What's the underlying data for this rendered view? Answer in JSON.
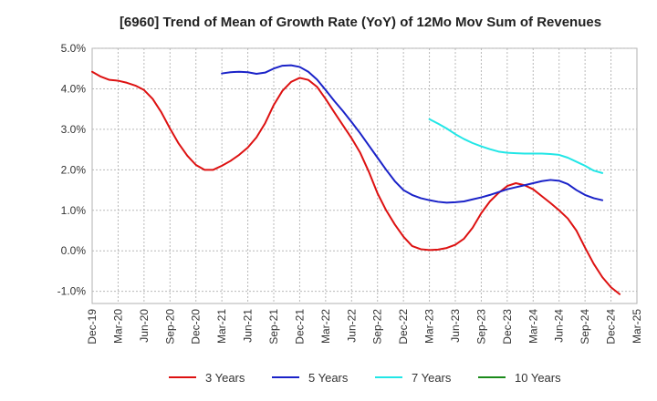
{
  "chart_data": {
    "type": "line",
    "title": "[6960]  Trend of Mean of Growth Rate (YoY) of 12Mo Mov Sum of Revenues",
    "xlabel": "",
    "ylabel": "",
    "ylim": [
      -1.3,
      5.0
    ],
    "y_ticks": [
      -1.0,
      0.0,
      1.0,
      2.0,
      3.0,
      4.0,
      5.0
    ],
    "y_tick_labels": [
      "-1.0%",
      "0.0%",
      "1.0%",
      "2.0%",
      "3.0%",
      "4.0%",
      "5.0%"
    ],
    "x_tick_labels": [
      "Dec-19",
      "Mar-20",
      "Jun-20",
      "Sep-20",
      "Dec-20",
      "Mar-21",
      "Jun-21",
      "Sep-21",
      "Dec-21",
      "Mar-22",
      "Jun-22",
      "Sep-22",
      "Dec-22",
      "Mar-23",
      "Jun-23",
      "Sep-23",
      "Dec-23",
      "Mar-24",
      "Jun-24",
      "Sep-24",
      "Dec-24",
      "Mar-25"
    ],
    "grid": true,
    "legend_position": "bottom",
    "series": [
      {
        "name": "3 Years",
        "color": "#dd1111",
        "points": [
          [
            0,
            4.42
          ],
          [
            1,
            4.3
          ],
          [
            2,
            4.22
          ],
          [
            3,
            4.2
          ],
          [
            4,
            4.15
          ],
          [
            5,
            4.08
          ],
          [
            6,
            3.97
          ],
          [
            7,
            3.75
          ],
          [
            8,
            3.42
          ],
          [
            9,
            3.02
          ],
          [
            10,
            2.65
          ],
          [
            11,
            2.35
          ],
          [
            12,
            2.12
          ],
          [
            13,
            2.0
          ],
          [
            14,
            2.0
          ],
          [
            15,
            2.1
          ],
          [
            16,
            2.22
          ],
          [
            17,
            2.37
          ],
          [
            18,
            2.55
          ],
          [
            19,
            2.8
          ],
          [
            20,
            3.15
          ],
          [
            21,
            3.6
          ],
          [
            22,
            3.95
          ],
          [
            23,
            4.17
          ],
          [
            24,
            4.27
          ],
          [
            25,
            4.22
          ],
          [
            26,
            4.05
          ],
          [
            27,
            3.75
          ],
          [
            28,
            3.42
          ],
          [
            29,
            3.1
          ],
          [
            30,
            2.78
          ],
          [
            31,
            2.42
          ],
          [
            32,
            1.95
          ],
          [
            33,
            1.42
          ],
          [
            34,
            1.0
          ],
          [
            35,
            0.65
          ],
          [
            36,
            0.35
          ],
          [
            37,
            0.12
          ],
          [
            38,
            0.04
          ],
          [
            39,
            0.02
          ],
          [
            40,
            0.03
          ],
          [
            41,
            0.07
          ],
          [
            42,
            0.15
          ],
          [
            43,
            0.3
          ],
          [
            44,
            0.57
          ],
          [
            45,
            0.93
          ],
          [
            46,
            1.22
          ],
          [
            47,
            1.43
          ],
          [
            48,
            1.6
          ],
          [
            49,
            1.67
          ],
          [
            50,
            1.62
          ],
          [
            51,
            1.52
          ],
          [
            52,
            1.35
          ],
          [
            53,
            1.18
          ],
          [
            54,
            1.0
          ],
          [
            55,
            0.8
          ],
          [
            56,
            0.5
          ],
          [
            57,
            0.08
          ],
          [
            58,
            -0.32
          ],
          [
            59,
            -0.65
          ],
          [
            60,
            -0.9
          ],
          [
            61,
            -1.07
          ]
        ]
      },
      {
        "name": "5 Years",
        "color": "#1a22c8",
        "points": [
          [
            15,
            4.38
          ],
          [
            16,
            4.41
          ],
          [
            17,
            4.42
          ],
          [
            18,
            4.41
          ],
          [
            19,
            4.37
          ],
          [
            20,
            4.4
          ],
          [
            21,
            4.5
          ],
          [
            22,
            4.57
          ],
          [
            23,
            4.58
          ],
          [
            24,
            4.54
          ],
          [
            25,
            4.42
          ],
          [
            26,
            4.23
          ],
          [
            27,
            3.97
          ],
          [
            28,
            3.7
          ],
          [
            29,
            3.45
          ],
          [
            30,
            3.18
          ],
          [
            31,
            2.9
          ],
          [
            32,
            2.6
          ],
          [
            33,
            2.3
          ],
          [
            34,
            2.0
          ],
          [
            35,
            1.72
          ],
          [
            36,
            1.5
          ],
          [
            37,
            1.38
          ],
          [
            38,
            1.3
          ],
          [
            39,
            1.25
          ],
          [
            40,
            1.21
          ],
          [
            41,
            1.19
          ],
          [
            42,
            1.2
          ],
          [
            43,
            1.22
          ],
          [
            44,
            1.27
          ],
          [
            45,
            1.32
          ],
          [
            46,
            1.38
          ],
          [
            47,
            1.45
          ],
          [
            48,
            1.52
          ],
          [
            49,
            1.57
          ],
          [
            50,
            1.62
          ],
          [
            51,
            1.67
          ],
          [
            52,
            1.72
          ],
          [
            53,
            1.75
          ],
          [
            54,
            1.73
          ],
          [
            55,
            1.65
          ],
          [
            56,
            1.5
          ],
          [
            57,
            1.38
          ],
          [
            58,
            1.3
          ],
          [
            59,
            1.25
          ]
        ]
      },
      {
        "name": "7 Years",
        "color": "#22e6e6",
        "points": [
          [
            39,
            3.25
          ],
          [
            40,
            3.14
          ],
          [
            41,
            3.02
          ],
          [
            42,
            2.88
          ],
          [
            43,
            2.76
          ],
          [
            44,
            2.66
          ],
          [
            45,
            2.58
          ],
          [
            46,
            2.51
          ],
          [
            47,
            2.45
          ],
          [
            48,
            2.42
          ],
          [
            49,
            2.41
          ],
          [
            50,
            2.4
          ],
          [
            51,
            2.4
          ],
          [
            52,
            2.4
          ],
          [
            53,
            2.39
          ],
          [
            54,
            2.37
          ],
          [
            55,
            2.3
          ],
          [
            56,
            2.2
          ],
          [
            57,
            2.1
          ],
          [
            58,
            1.98
          ],
          [
            59,
            1.92
          ]
        ]
      },
      {
        "name": "10 Years",
        "color": "#1a8a1a",
        "points": []
      }
    ]
  }
}
